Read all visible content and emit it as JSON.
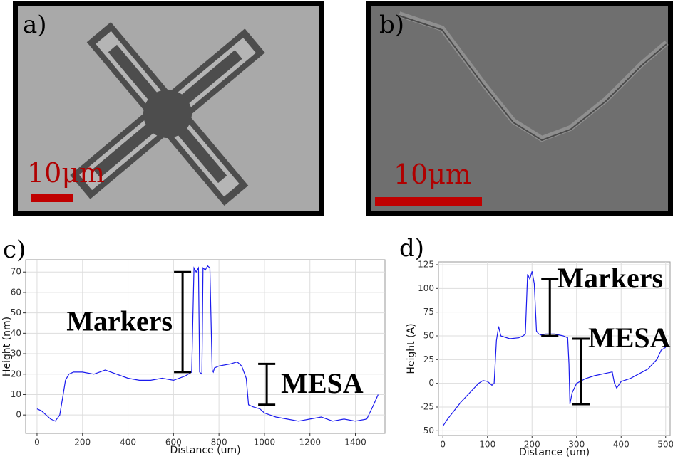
{
  "images": [
    {
      "label": "a)",
      "scale": "10μm"
    },
    {
      "label": "b)",
      "scale": "10μm"
    }
  ],
  "chart_data": [
    {
      "type": "line",
      "panel": "c)",
      "xlabel": "Distance (um)",
      "ylabel": "Height (nm)",
      "color": "#1a1aee",
      "grid": true,
      "xlim": [
        -50,
        1530
      ],
      "xticks": [
        0,
        200,
        400,
        600,
        800,
        1000,
        1200,
        1400
      ],
      "ylim": [
        -9,
        76
      ],
      "yticks": [
        0,
        10,
        20,
        30,
        40,
        50,
        60,
        70
      ],
      "x": [
        0,
        20,
        40,
        60,
        80,
        100,
        115,
        125,
        140,
        160,
        200,
        250,
        300,
        350,
        400,
        450,
        500,
        550,
        600,
        650,
        680,
        690,
        700,
        710,
        715,
        725,
        730,
        740,
        750,
        760,
        770,
        775,
        780,
        800,
        850,
        880,
        900,
        920,
        930,
        950,
        980,
        1000,
        1050,
        1100,
        1150,
        1200,
        1250,
        1300,
        1350,
        1400,
        1450,
        1480,
        1500
      ],
      "values": [
        3,
        2,
        0,
        -2,
        -3,
        0,
        10,
        17,
        20,
        21,
        21,
        20,
        22,
        20,
        18,
        17,
        17,
        18,
        17,
        19,
        21,
        72,
        70,
        72,
        21,
        20,
        72,
        71,
        73,
        72,
        22,
        21,
        23,
        24,
        25,
        26,
        24,
        18,
        5,
        4,
        3,
        1,
        -1,
        -2,
        -3,
        -2,
        -1,
        -3,
        -2,
        -3,
        -2,
        5,
        10
      ],
      "annotations": [
        {
          "text": "Markers",
          "x": 640,
          "y0": 21,
          "y1": 70
        },
        {
          "text": "MESA",
          "x": 1010,
          "y0": 5,
          "y1": 25
        }
      ]
    },
    {
      "type": "line",
      "panel": "d)",
      "xlabel": "Distance (um)",
      "ylabel": "Height (A)",
      "color": "#1a1aee",
      "grid": true,
      "xlim": [
        -10,
        510
      ],
      "xticks": [
        0,
        100,
        200,
        300,
        400,
        500
      ],
      "ylim": [
        -55,
        128
      ],
      "yticks": [
        -50,
        -25,
        0,
        25,
        50,
        75,
        100,
        125
      ],
      "x": [
        0,
        10,
        20,
        40,
        60,
        80,
        90,
        100,
        110,
        115,
        120,
        125,
        130,
        150,
        170,
        180,
        185,
        190,
        195,
        200,
        205,
        210,
        215,
        220,
        230,
        250,
        270,
        280,
        283,
        285,
        290,
        300,
        320,
        340,
        360,
        380,
        385,
        390,
        400,
        420,
        440,
        460,
        480,
        490,
        500
      ],
      "values": [
        -45,
        -38,
        -32,
        -20,
        -10,
        0,
        3,
        2,
        -2,
        0,
        45,
        60,
        50,
        47,
        48,
        50,
        52,
        115,
        110,
        118,
        105,
        55,
        52,
        51,
        52,
        52,
        50,
        48,
        20,
        -22,
        -10,
        0,
        5,
        8,
        10,
        12,
        0,
        -5,
        2,
        5,
        10,
        15,
        25,
        35,
        38
      ],
      "annotations": [
        {
          "text": "Markers",
          "x": 240,
          "y0": 50,
          "y1": 110
        },
        {
          "text": "MESA",
          "x": 310,
          "y0": -22,
          "y1": 47
        }
      ]
    }
  ]
}
